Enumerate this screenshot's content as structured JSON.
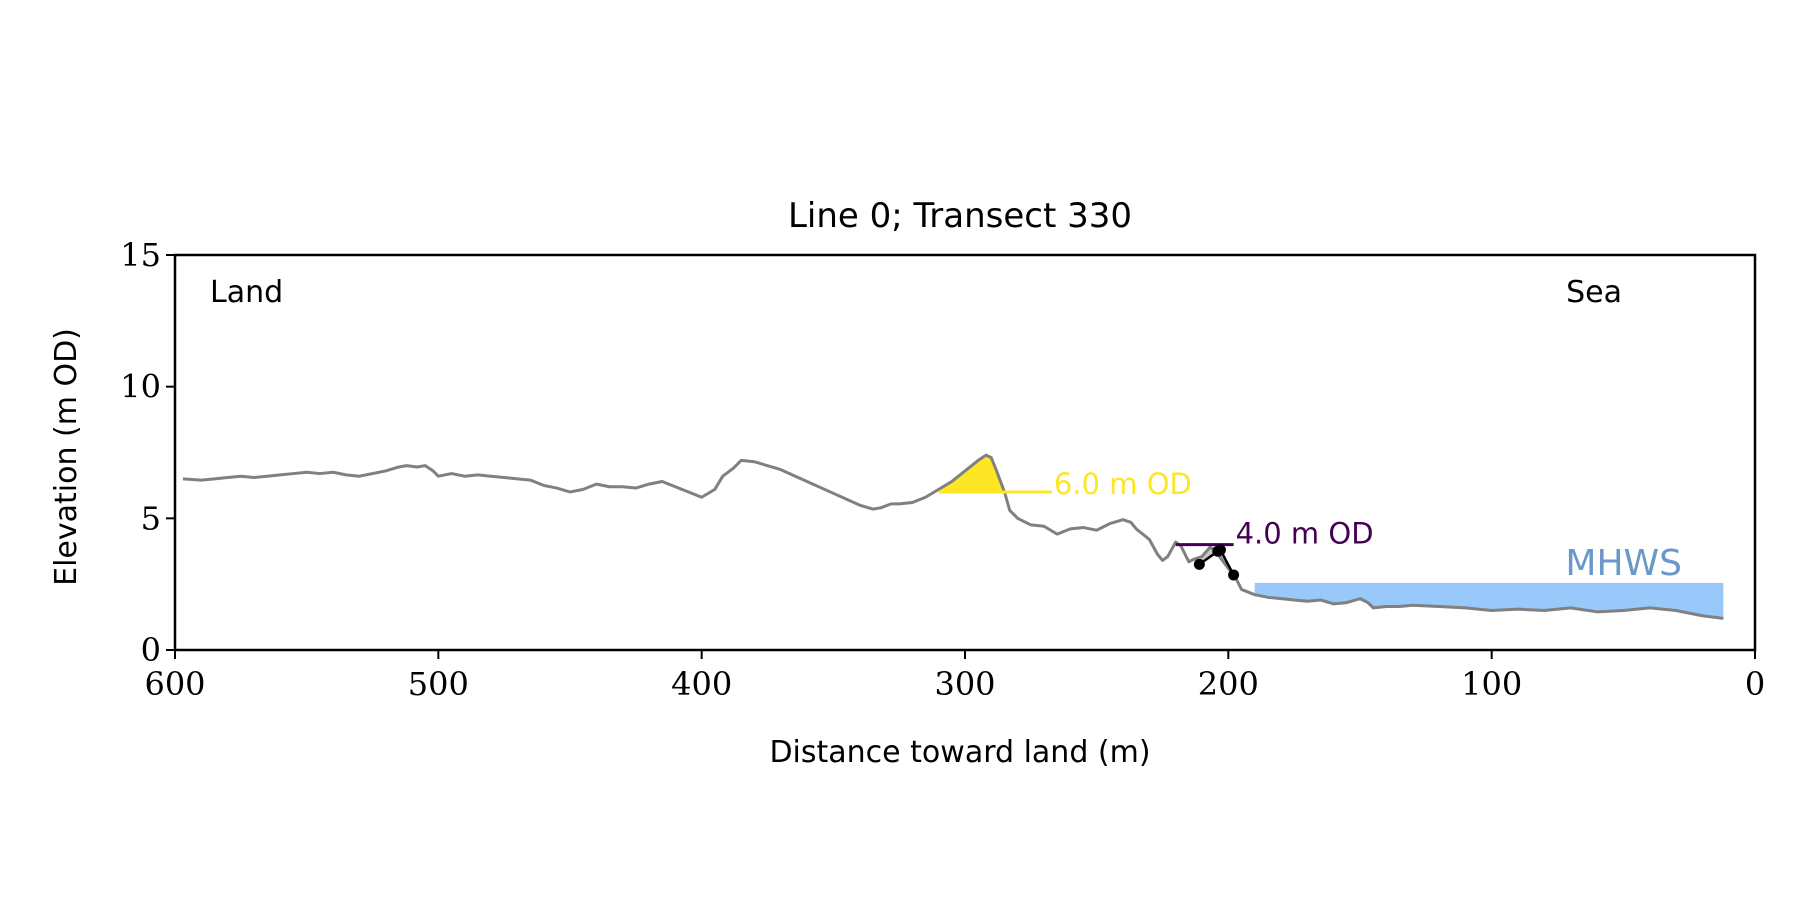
{
  "chart_data": {
    "type": "line",
    "title": "Line 0; Transect 330",
    "xlabel": "Distance toward land (m)",
    "ylabel": "Elevation (m OD)",
    "xlim": [
      600,
      0
    ],
    "ylim": [
      0,
      15
    ],
    "x_ticks": [
      600,
      500,
      400,
      300,
      200,
      100,
      0
    ],
    "y_ticks": [
      0,
      5,
      10,
      15
    ],
    "grid": false,
    "corner_labels": {
      "left": "Land",
      "right": "Sea"
    },
    "colors": {
      "profile": "#808080",
      "threshold_6": "#fde725",
      "threshold_4": "#440154",
      "mhws_fill": "#99c8fa",
      "mhws_label": "#6a98c8",
      "points": "#000000",
      "grey_fill": "#c8c8c8"
    },
    "profile": {
      "x": [
        597,
        590,
        585,
        580,
        575,
        570,
        565,
        560,
        555,
        550,
        545,
        540,
        535,
        530,
        525,
        520,
        515,
        512,
        508,
        505,
        502,
        500,
        495,
        490,
        485,
        480,
        475,
        470,
        465,
        460,
        455,
        450,
        445,
        440,
        435,
        430,
        425,
        420,
        415,
        410,
        405,
        400,
        395,
        392,
        388,
        385,
        380,
        375,
        370,
        360,
        350,
        340,
        335,
        332,
        328,
        325,
        320,
        315,
        310,
        305,
        300,
        295,
        292,
        290,
        288,
        285,
        283,
        280,
        275,
        270,
        265,
        260,
        255,
        250,
        245,
        240,
        237,
        235,
        230,
        227,
        225,
        223,
        220,
        218,
        215,
        213,
        210,
        207,
        205,
        203,
        200,
        197,
        195,
        190,
        185,
        180,
        175,
        170,
        165,
        160,
        155,
        150,
        147,
        145,
        140,
        135,
        130,
        120,
        110,
        100,
        90,
        80,
        70,
        60,
        50,
        40,
        30,
        20,
        12
      ],
      "y": [
        6.5,
        6.45,
        6.5,
        6.55,
        6.6,
        6.55,
        6.6,
        6.65,
        6.7,
        6.75,
        6.7,
        6.75,
        6.65,
        6.6,
        6.7,
        6.8,
        6.95,
        7.0,
        6.95,
        7.0,
        6.8,
        6.6,
        6.7,
        6.6,
        6.65,
        6.6,
        6.55,
        6.5,
        6.45,
        6.25,
        6.15,
        6.0,
        6.1,
        6.3,
        6.2,
        6.2,
        6.15,
        6.3,
        6.4,
        6.2,
        6.0,
        5.8,
        6.1,
        6.6,
        6.9,
        7.2,
        7.15,
        7.0,
        6.85,
        6.4,
        5.95,
        5.5,
        5.35,
        5.4,
        5.55,
        5.55,
        5.6,
        5.8,
        6.1,
        6.4,
        6.8,
        7.2,
        7.4,
        7.3,
        6.8,
        6.0,
        5.3,
        5.0,
        4.75,
        4.7,
        4.4,
        4.6,
        4.65,
        4.55,
        4.8,
        4.95,
        4.85,
        4.6,
        4.2,
        3.65,
        3.4,
        3.55,
        4.1,
        3.95,
        3.35,
        3.45,
        3.55,
        3.9,
        3.8,
        3.5,
        3.1,
        2.7,
        2.3,
        2.1,
        2.0,
        1.95,
        1.9,
        1.85,
        1.9,
        1.75,
        1.8,
        1.95,
        1.8,
        1.6,
        1.65,
        1.65,
        1.7,
        1.65,
        1.6,
        1.5,
        1.55,
        1.5,
        1.6,
        1.45,
        1.5,
        1.6,
        1.5,
        1.3,
        1.2
      ]
    },
    "threshold_6m": {
      "level": 6.0,
      "label": "6.0 m OD",
      "x_range": [
        310,
        267
      ]
    },
    "threshold_4m": {
      "level": 4.0,
      "label": "4.0 m OD",
      "x_range": [
        220,
        198
      ]
    },
    "points": {
      "x": [
        211,
        204,
        203,
        198
      ],
      "y": [
        3.25,
        3.75,
        3.8,
        2.85
      ]
    },
    "mhws": {
      "level": 2.55,
      "label": "MHWS",
      "x_range": [
        190,
        12
      ]
    }
  }
}
